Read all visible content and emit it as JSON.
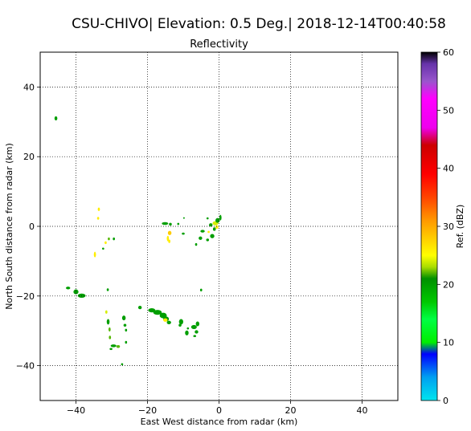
{
  "figure": {
    "suptitle": "CSU-CHIVO| Elevation: 0.5 Deg.| 2018-12-14T00:40:58"
  },
  "chart_data": {
    "type": "heatmap",
    "title": "Reflectivity",
    "xlabel": "East West distance from radar (km)",
    "ylabel": "North South distance from radar (km)",
    "xlim": [
      -50,
      50
    ],
    "ylim": [
      -50,
      50
    ],
    "xticks": [
      -40,
      -20,
      0,
      20,
      40
    ],
    "yticks": [
      -40,
      -20,
      0,
      20,
      40
    ],
    "grid": true,
    "colorbar": {
      "label": "Ref. (dBZ)",
      "range": [
        0,
        60
      ],
      "ticks": [
        0,
        10,
        20,
        30,
        40,
        50,
        60
      ],
      "stops": [
        {
          "v": 0,
          "c": "#00e5ee"
        },
        {
          "v": 4,
          "c": "#00a0f0"
        },
        {
          "v": 8,
          "c": "#0000ff"
        },
        {
          "v": 10,
          "c": "#00ee00"
        },
        {
          "v": 14,
          "c": "#00ff44"
        },
        {
          "v": 17,
          "c": "#00c800"
        },
        {
          "v": 21,
          "c": "#009000"
        },
        {
          "v": 23,
          "c": "#aadd00"
        },
        {
          "v": 25,
          "c": "#ffff00"
        },
        {
          "v": 28,
          "c": "#ffcc00"
        },
        {
          "v": 31,
          "c": "#ff9900"
        },
        {
          "v": 35,
          "c": "#ff4400"
        },
        {
          "v": 39,
          "c": "#ff0000"
        },
        {
          "v": 44,
          "c": "#cc0000"
        },
        {
          "v": 47,
          "c": "#ee00ee"
        },
        {
          "v": 52,
          "c": "#ff00ff"
        },
        {
          "v": 55,
          "c": "#9955cc"
        },
        {
          "v": 58,
          "c": "#6633aa"
        },
        {
          "v": 60,
          "c": "#000000"
        }
      ]
    },
    "echoes": [
      {
        "x": -45.6,
        "y": 31.0,
        "rx": 0.4,
        "ry": 0.6,
        "dbz": 20
      },
      {
        "x": -33.6,
        "y": 4.9,
        "rx": 0.3,
        "ry": 0.5,
        "dbz": 26
      },
      {
        "x": -33.8,
        "y": 2.3,
        "rx": 0.3,
        "ry": 0.4,
        "dbz": 26
      },
      {
        "x": -34.7,
        "y": -8.1,
        "rx": 0.3,
        "ry": 0.8,
        "dbz": 26
      },
      {
        "x": -31.7,
        "y": -4.7,
        "rx": 0.3,
        "ry": 0.4,
        "dbz": 26
      },
      {
        "x": -30.8,
        "y": -3.6,
        "rx": 0.3,
        "ry": 0.4,
        "dbz": 22
      },
      {
        "x": -29.4,
        "y": -3.6,
        "rx": 0.3,
        "ry": 0.4,
        "dbz": 20
      },
      {
        "x": -32.4,
        "y": -6.4,
        "rx": 0.3,
        "ry": 0.3,
        "dbz": 20
      },
      {
        "x": -15.1,
        "y": 0.8,
        "rx": 0.9,
        "ry": 0.4,
        "dbz": 20
      },
      {
        "x": -13.6,
        "y": 0.6,
        "rx": 0.4,
        "ry": 0.4,
        "dbz": 20
      },
      {
        "x": -11.4,
        "y": 0.7,
        "rx": 0.3,
        "ry": 0.3,
        "dbz": 20
      },
      {
        "x": -13.8,
        "y": -1.9,
        "rx": 0.5,
        "ry": 0.6,
        "dbz": 28
      },
      {
        "x": -14.3,
        "y": -3.5,
        "rx": 0.3,
        "ry": 0.8,
        "dbz": 26
      },
      {
        "x": -13.9,
        "y": -4.3,
        "rx": 0.3,
        "ry": 0.5,
        "dbz": 26
      },
      {
        "x": -10.0,
        "y": -2.1,
        "rx": 0.4,
        "ry": 0.3,
        "dbz": 20
      },
      {
        "x": -5.2,
        "y": -3.4,
        "rx": 0.5,
        "ry": 0.5,
        "dbz": 20
      },
      {
        "x": -4.6,
        "y": -1.4,
        "rx": 0.6,
        "ry": 0.4,
        "dbz": 20
      },
      {
        "x": -6.4,
        "y": -5.2,
        "rx": 0.3,
        "ry": 0.4,
        "dbz": 20
      },
      {
        "x": -3.2,
        "y": -3.9,
        "rx": 0.4,
        "ry": 0.4,
        "dbz": 20
      },
      {
        "x": -1.9,
        "y": -2.8,
        "rx": 0.6,
        "ry": 0.6,
        "dbz": 20
      },
      {
        "x": -2.3,
        "y": 0.4,
        "rx": 0.5,
        "ry": 0.5,
        "dbz": 20
      },
      {
        "x": -3.2,
        "y": 2.3,
        "rx": 0.3,
        "ry": 0.3,
        "dbz": 20
      },
      {
        "x": -1.0,
        "y": 0.9,
        "rx": 0.8,
        "ry": 0.6,
        "dbz": 24
      },
      {
        "x": -0.4,
        "y": 1.7,
        "rx": 0.6,
        "ry": 0.7,
        "dbz": 20
      },
      {
        "x": 0.4,
        "y": 2.5,
        "rx": 0.3,
        "ry": 0.8,
        "dbz": 20
      },
      {
        "x": -1.3,
        "y": -0.8,
        "rx": 0.4,
        "ry": 0.5,
        "dbz": 20
      },
      {
        "x": -0.6,
        "y": -0.2,
        "rx": 0.4,
        "ry": 0.5,
        "dbz": 26
      },
      {
        "x": -2.9,
        "y": -1.6,
        "rx": 0.3,
        "ry": 0.3,
        "dbz": 26
      },
      {
        "x": -9.8,
        "y": 2.4,
        "rx": 0.2,
        "ry": 0.2,
        "dbz": 20
      },
      {
        "x": -5.0,
        "y": -18.3,
        "rx": 0.3,
        "ry": 0.4,
        "dbz": 20
      },
      {
        "x": -42.2,
        "y": -17.7,
        "rx": 0.6,
        "ry": 0.4,
        "dbz": 20
      },
      {
        "x": -40.0,
        "y": -18.8,
        "rx": 0.7,
        "ry": 0.7,
        "dbz": 20
      },
      {
        "x": -38.4,
        "y": -19.9,
        "rx": 1.1,
        "ry": 0.6,
        "dbz": 20
      },
      {
        "x": -31.1,
        "y": -18.2,
        "rx": 0.3,
        "ry": 0.4,
        "dbz": 20
      },
      {
        "x": -31.5,
        "y": -24.6,
        "rx": 0.3,
        "ry": 0.5,
        "dbz": 24
      },
      {
        "x": -31.0,
        "y": -27.4,
        "rx": 0.4,
        "ry": 0.8,
        "dbz": 20
      },
      {
        "x": -30.6,
        "y": -29.6,
        "rx": 0.3,
        "ry": 0.6,
        "dbz": 22
      },
      {
        "x": -30.5,
        "y": -31.9,
        "rx": 0.3,
        "ry": 0.5,
        "dbz": 22
      },
      {
        "x": -29.5,
        "y": -34.3,
        "rx": 0.8,
        "ry": 0.4,
        "dbz": 20
      },
      {
        "x": -28.2,
        "y": -34.5,
        "rx": 0.5,
        "ry": 0.4,
        "dbz": 22
      },
      {
        "x": -30.2,
        "y": -35.2,
        "rx": 0.4,
        "ry": 0.3,
        "dbz": 20
      },
      {
        "x": -26.6,
        "y": -26.3,
        "rx": 0.5,
        "ry": 0.7,
        "dbz": 20
      },
      {
        "x": -26.3,
        "y": -28.4,
        "rx": 0.4,
        "ry": 0.4,
        "dbz": 20
      },
      {
        "x": -26.0,
        "y": -29.8,
        "rx": 0.3,
        "ry": 0.4,
        "dbz": 20
      },
      {
        "x": -26.0,
        "y": -33.3,
        "rx": 0.3,
        "ry": 0.4,
        "dbz": 20
      },
      {
        "x": -27.1,
        "y": -39.6,
        "rx": 0.3,
        "ry": 0.3,
        "dbz": 20
      },
      {
        "x": -22.1,
        "y": -23.3,
        "rx": 0.5,
        "ry": 0.5,
        "dbz": 20
      },
      {
        "x": -18.8,
        "y": -24.1,
        "rx": 1.0,
        "ry": 0.6,
        "dbz": 20
      },
      {
        "x": -17.2,
        "y": -24.7,
        "rx": 1.2,
        "ry": 0.7,
        "dbz": 20
      },
      {
        "x": -15.6,
        "y": -25.6,
        "rx": 1.0,
        "ry": 0.8,
        "dbz": 20
      },
      {
        "x": -14.8,
        "y": -26.6,
        "rx": 0.8,
        "ry": 0.7,
        "dbz": 20
      },
      {
        "x": -15.0,
        "y": -26.9,
        "rx": 0.6,
        "ry": 0.5,
        "dbz": 26
      },
      {
        "x": -14.0,
        "y": -27.6,
        "rx": 0.6,
        "ry": 0.5,
        "dbz": 20
      },
      {
        "x": -10.6,
        "y": -27.4,
        "rx": 0.6,
        "ry": 0.8,
        "dbz": 20
      },
      {
        "x": -10.9,
        "y": -28.4,
        "rx": 0.4,
        "ry": 0.4,
        "dbz": 20
      },
      {
        "x": -9.0,
        "y": -30.6,
        "rx": 0.5,
        "ry": 0.7,
        "dbz": 20
      },
      {
        "x": -8.7,
        "y": -29.3,
        "rx": 0.3,
        "ry": 0.3,
        "dbz": 20
      },
      {
        "x": -7.0,
        "y": -28.9,
        "rx": 0.8,
        "ry": 0.6,
        "dbz": 20
      },
      {
        "x": -6.0,
        "y": -28.0,
        "rx": 0.5,
        "ry": 0.7,
        "dbz": 20
      },
      {
        "x": -6.3,
        "y": -30.3,
        "rx": 0.5,
        "ry": 0.5,
        "dbz": 20
      },
      {
        "x": -6.8,
        "y": -31.5,
        "rx": 0.4,
        "ry": 0.3,
        "dbz": 20
      }
    ]
  }
}
